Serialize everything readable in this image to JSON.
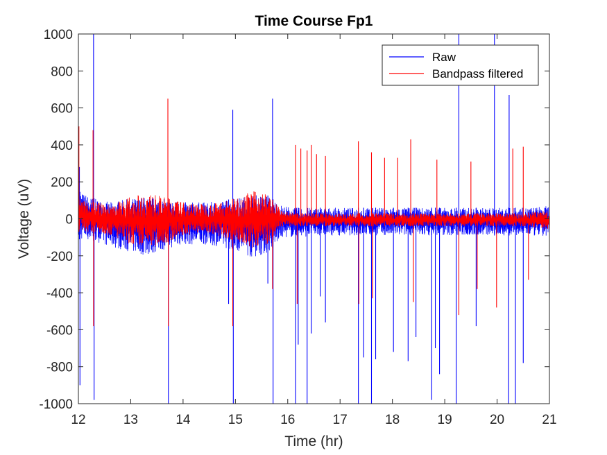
{
  "chart_data": {
    "type": "line",
    "title": "Time Course Fp1",
    "xlabel": "Time (hr)",
    "ylabel": "Voltage (uV)",
    "xlim": [
      12,
      21
    ],
    "ylim": [
      -1000,
      1000
    ],
    "xticks": [
      "12",
      "13",
      "14",
      "15",
      "16",
      "17",
      "18",
      "19",
      "20",
      "21"
    ],
    "yticks": [
      "-1000",
      "-800",
      "-600",
      "-400",
      "-200",
      "0",
      "200",
      "400",
      "600",
      "800",
      "1000"
    ],
    "grid": false,
    "legend_position": "top-right",
    "series": [
      {
        "name": "Raw",
        "color": "#0000ff",
        "envelope": {
          "x": [
            12.0,
            12.3,
            12.6,
            13.0,
            13.3,
            13.6,
            14.0,
            14.5,
            15.0,
            15.3,
            15.6,
            15.9,
            16.2,
            16.6,
            17.0,
            17.5,
            18.0,
            18.5,
            19.0,
            19.5,
            20.0,
            20.5,
            21.0
          ],
          "upper": [
            150,
            110,
            90,
            110,
            120,
            110,
            90,
            90,
            110,
            130,
            130,
            70,
            60,
            60,
            60,
            60,
            60,
            60,
            60,
            60,
            60,
            60,
            70
          ],
          "lower": [
            -110,
            -120,
            -150,
            -180,
            -200,
            -170,
            -140,
            -140,
            -170,
            -210,
            -190,
            -100,
            -100,
            -90,
            -90,
            -90,
            -90,
            -90,
            -90,
            -90,
            -90,
            -90,
            -100
          ]
        },
        "spikes": [
          {
            "x": 12.02,
            "y": 280
          },
          {
            "x": 12.03,
            "y": -900
          },
          {
            "x": 12.29,
            "y": 1000
          },
          {
            "x": 12.3,
            "y": -980
          },
          {
            "x": 13.72,
            "y": -1000
          },
          {
            "x": 14.87,
            "y": -460
          },
          {
            "x": 14.95,
            "y": 590
          },
          {
            "x": 14.96,
            "y": -1000
          },
          {
            "x": 15.62,
            "y": -350
          },
          {
            "x": 15.71,
            "y": 650
          },
          {
            "x": 15.72,
            "y": -1000
          },
          {
            "x": 16.15,
            "y": -1000
          },
          {
            "x": 16.2,
            "y": -680
          },
          {
            "x": 16.37,
            "y": -1000
          },
          {
            "x": 16.45,
            "y": -620
          },
          {
            "x": 16.62,
            "y": -420
          },
          {
            "x": 16.72,
            "y": -560
          },
          {
            "x": 17.35,
            "y": -1000
          },
          {
            "x": 17.45,
            "y": -750
          },
          {
            "x": 17.6,
            "y": -1000
          },
          {
            "x": 17.68,
            "y": -760
          },
          {
            "x": 18.02,
            "y": -720
          },
          {
            "x": 18.3,
            "y": -770
          },
          {
            "x": 18.45,
            "y": -640
          },
          {
            "x": 18.75,
            "y": -980
          },
          {
            "x": 18.82,
            "y": -700
          },
          {
            "x": 18.9,
            "y": -840
          },
          {
            "x": 19.22,
            "y": -1000
          },
          {
            "x": 19.27,
            "y": 1000
          },
          {
            "x": 19.6,
            "y": -580
          },
          {
            "x": 19.95,
            "y": 1000
          },
          {
            "x": 20.22,
            "y": -1000
          },
          {
            "x": 20.23,
            "y": 670
          },
          {
            "x": 20.35,
            "y": -1000
          },
          {
            "x": 20.5,
            "y": -780
          }
        ]
      },
      {
        "name": "Bandpass filtered",
        "color": "#ff0000",
        "envelope": {
          "x": [
            12.0,
            12.3,
            12.6,
            13.0,
            13.3,
            13.6,
            14.0,
            14.5,
            15.0,
            15.3,
            15.6,
            15.9,
            16.2,
            16.6,
            17.0,
            17.5,
            18.0,
            18.5,
            19.0,
            19.5,
            20.0,
            20.5,
            21.0
          ],
          "upper": [
            110,
            90,
            80,
            120,
            140,
            120,
            90,
            80,
            110,
            150,
            140,
            40,
            30,
            30,
            30,
            30,
            30,
            30,
            30,
            30,
            30,
            30,
            50
          ],
          "lower": [
            -70,
            -70,
            -90,
            -140,
            -160,
            -140,
            -90,
            -80,
            -120,
            -160,
            -140,
            -40,
            -40,
            -40,
            -40,
            -40,
            -40,
            -40,
            -40,
            -40,
            -40,
            -40,
            -60
          ]
        },
        "spikes": [
          {
            "x": 12.01,
            "y": 500
          },
          {
            "x": 12.28,
            "y": 480
          },
          {
            "x": 12.29,
            "y": -580
          },
          {
            "x": 13.71,
            "y": 650
          },
          {
            "x": 13.72,
            "y": -580
          },
          {
            "x": 14.95,
            "y": -580
          },
          {
            "x": 15.71,
            "y": -380
          },
          {
            "x": 16.15,
            "y": 400
          },
          {
            "x": 16.18,
            "y": -460
          },
          {
            "x": 16.25,
            "y": 380
          },
          {
            "x": 16.37,
            "y": 370
          },
          {
            "x": 16.45,
            "y": 400
          },
          {
            "x": 16.55,
            "y": 350
          },
          {
            "x": 16.72,
            "y": 340
          },
          {
            "x": 17.35,
            "y": 420
          },
          {
            "x": 17.36,
            "y": -460
          },
          {
            "x": 17.6,
            "y": 360
          },
          {
            "x": 17.62,
            "y": -430
          },
          {
            "x": 17.85,
            "y": 330
          },
          {
            "x": 18.1,
            "y": 330
          },
          {
            "x": 18.35,
            "y": 430
          },
          {
            "x": 18.4,
            "y": -450
          },
          {
            "x": 18.85,
            "y": 320
          },
          {
            "x": 19.27,
            "y": -520
          },
          {
            "x": 19.5,
            "y": 310
          },
          {
            "x": 19.62,
            "y": -380
          },
          {
            "x": 19.99,
            "y": -480
          },
          {
            "x": 20.3,
            "y": 380
          },
          {
            "x": 20.5,
            "y": 390
          },
          {
            "x": 20.6,
            "y": -330
          }
        ]
      }
    ]
  }
}
